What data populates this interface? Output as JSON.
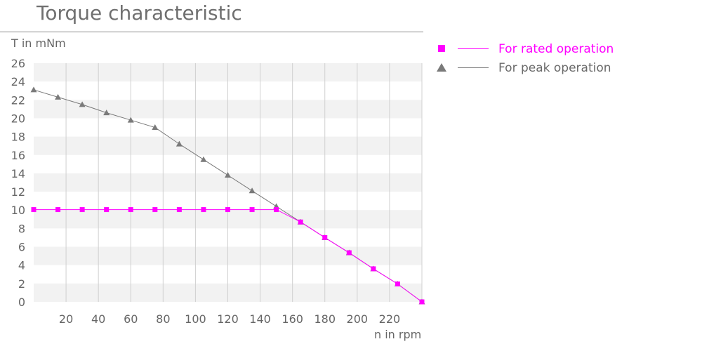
{
  "title": "Torque characteristic",
  "chart_data": {
    "type": "line",
    "title": "Torque characteristic",
    "ylabel": "T in mNm",
    "xlabel": "n in rpm",
    "xlim": [
      0,
      240
    ],
    "ylim": [
      0,
      26
    ],
    "x_ticks": [
      20,
      40,
      60,
      80,
      100,
      120,
      140,
      160,
      180,
      200,
      220
    ],
    "y_ticks": [
      0,
      2,
      4,
      6,
      8,
      10,
      12,
      14,
      16,
      18,
      20,
      22,
      24,
      26
    ],
    "grid": "alternating horizontal bands, vertical gridlines",
    "legend_position": "right",
    "series": [
      {
        "name": "For rated operation",
        "color": "#ff00ff",
        "marker": "square",
        "x": [
          0,
          15,
          30,
          45,
          60,
          75,
          90,
          105,
          120,
          135,
          150,
          165,
          180,
          195,
          210,
          225,
          240
        ],
        "y": [
          10.05,
          10.05,
          10.05,
          10.05,
          10.05,
          10.05,
          10.05,
          10.05,
          10.05,
          10.05,
          10.05,
          8.7,
          7.0,
          5.35,
          3.6,
          1.95,
          0.0
        ]
      },
      {
        "name": "For peak operation",
        "color": "#7a7a7a",
        "marker": "triangle",
        "x": [
          0,
          15,
          30,
          45,
          60,
          75,
          90,
          105,
          120,
          135,
          150,
          165,
          180,
          195,
          210,
          225,
          240
        ],
        "y": [
          23.1,
          22.3,
          21.5,
          20.6,
          19.8,
          19.0,
          17.2,
          15.5,
          13.8,
          12.1,
          10.4,
          8.7,
          7.0,
          5.35,
          3.6,
          1.95,
          0.0
        ]
      }
    ]
  }
}
